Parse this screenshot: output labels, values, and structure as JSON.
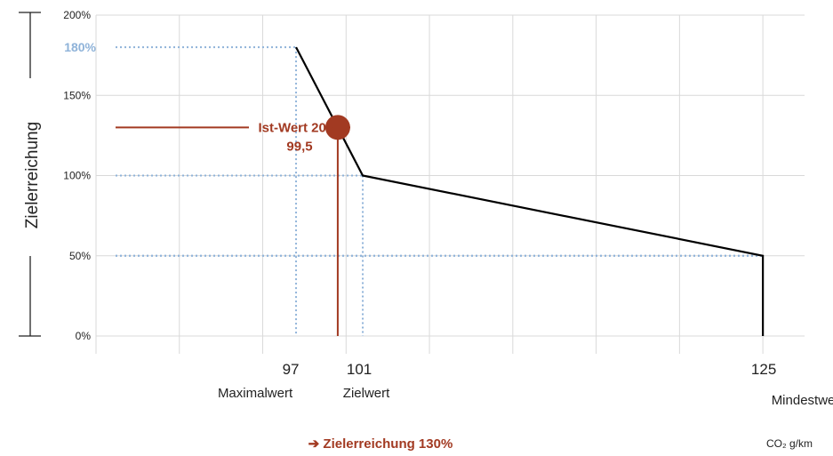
{
  "chart_data": {
    "type": "line",
    "ylabel": "Zielerreichung",
    "y_ticks": [
      "0%",
      "50%",
      "100%",
      "150%",
      "200%"
    ],
    "ylim": [
      0,
      200
    ],
    "xlim": [
      85,
      127.5
    ],
    "grid": true,
    "highlight_tick": "180%",
    "series": [
      {
        "x": [
          97,
          101,
          125,
          125
        ],
        "y": [
          180,
          100,
          50,
          0
        ]
      }
    ],
    "reference_points": [
      {
        "x": 97,
        "y": 180,
        "value_label": "97",
        "name_label": "Maximalwert"
      },
      {
        "x": 101,
        "y": 100,
        "value_label": "101",
        "name_label": "Zielwert"
      },
      {
        "x": 125,
        "y": 50,
        "value_label": "125",
        "name_label": "Mindestwert"
      }
    ],
    "actual": {
      "x": 99.5,
      "y": 130,
      "label_line1": "Ist-Wert 2024",
      "label_line2": "99,5"
    },
    "result_text": "➔ Zielerreichung 130%",
    "unit_label": "CO₂ g/km",
    "colors": {
      "line": "#000000",
      "actual": "#a23a22",
      "dotted": "#8fb3d9",
      "grid": "#d9d9d9"
    }
  }
}
